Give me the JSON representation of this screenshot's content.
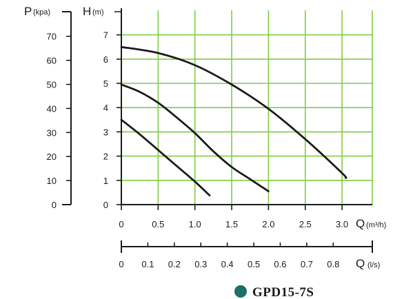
{
  "chart_data": {
    "type": "line",
    "title": "",
    "model": {
      "label": "GPD15-7S",
      "marker_color": "#1d6f6a"
    },
    "colors": {
      "grid": "#7fcc3f",
      "curve": "#1a1a1a",
      "axis": "#1a1a1a"
    },
    "grid": true,
    "y_axis_pressure": {
      "symbol": "P",
      "unit": "(kpa)",
      "ticks": [
        "0",
        "10",
        "20",
        "30",
        "40",
        "50",
        "60",
        "70"
      ]
    },
    "y_axis_head": {
      "symbol": "H",
      "unit": "(m)",
      "ylim": [
        0,
        7.5
      ],
      "ticks": [
        "0",
        "1",
        "2",
        "3",
        "4",
        "5",
        "6",
        "7"
      ]
    },
    "x_axis_flow_m3h": {
      "symbol": "Q",
      "unit": "(m³/h)",
      "xlim": [
        0,
        3.4
      ],
      "ticks": [
        "0",
        "0.5",
        "1.0",
        "1.5",
        "2.0",
        "2.5",
        "3.0"
      ]
    },
    "x_axis_flow_ls": {
      "symbol": "Q",
      "unit": "(l/s)",
      "ticks": [
        "0",
        "0.1",
        "0.2",
        "0.3",
        "0.4",
        "0.5",
        "0.6",
        "0.7",
        "0.8"
      ]
    },
    "series": [
      {
        "x": [
          0,
          0.5,
          1.0,
          1.5,
          2.0,
          2.5,
          3.0,
          3.05
        ],
        "y": [
          6.5,
          6.25,
          5.75,
          4.95,
          3.95,
          2.7,
          1.3,
          1.1
        ]
      },
      {
        "x": [
          0,
          0.25,
          0.5,
          0.75,
          1.0,
          1.25,
          1.5,
          1.75,
          2.0
        ],
        "y": [
          4.95,
          4.65,
          4.2,
          3.6,
          2.95,
          2.2,
          1.55,
          1.05,
          0.55
        ]
      },
      {
        "x": [
          0,
          0.25,
          0.5,
          0.75,
          1.0,
          1.2
        ],
        "y": [
          3.5,
          2.9,
          2.25,
          1.6,
          0.95,
          0.38
        ]
      }
    ]
  }
}
